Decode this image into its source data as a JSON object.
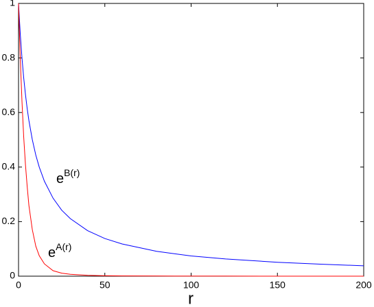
{
  "chart_data": {
    "type": "line",
    "xlabel": "r",
    "x": [
      0,
      1,
      2,
      3,
      4,
      5,
      6,
      8,
      10,
      12,
      15,
      20,
      25,
      30,
      40,
      50,
      60,
      80,
      100,
      120,
      150,
      175,
      200
    ],
    "series": [
      {
        "color": "#0000ff",
        "values": [
          1,
          0.889,
          0.8,
          0.727,
          0.667,
          0.615,
          0.571,
          0.5,
          0.444,
          0.4,
          0.348,
          0.286,
          0.242,
          0.211,
          0.167,
          0.138,
          0.118,
          0.091,
          0.074,
          0.063,
          0.051,
          0.044,
          0.038
        ]
      },
      {
        "color": "#ff0000",
        "values": [
          1,
          0.8,
          0.64,
          0.51,
          0.41,
          0.33,
          0.26,
          0.17,
          0.11,
          0.075,
          0.045,
          0.02,
          0.011,
          0.007,
          0.003,
          0.0015,
          0.001,
          0.0005,
          0.0003,
          0.0002,
          0.0001,
          0.0001,
          0.0001
        ]
      }
    ],
    "annotations": [
      {
        "base": "e",
        "sup": "B(r)"
      },
      {
        "base": "e",
        "sup": "A(r)"
      }
    ],
    "xlim": [
      0,
      200
    ],
    "xticks": [
      0,
      50,
      100,
      150,
      200
    ],
    "ylim": [
      0,
      1
    ],
    "yticks": [
      0,
      0.2,
      0.4,
      0.6,
      0.8,
      1
    ],
    "grid": false
  }
}
